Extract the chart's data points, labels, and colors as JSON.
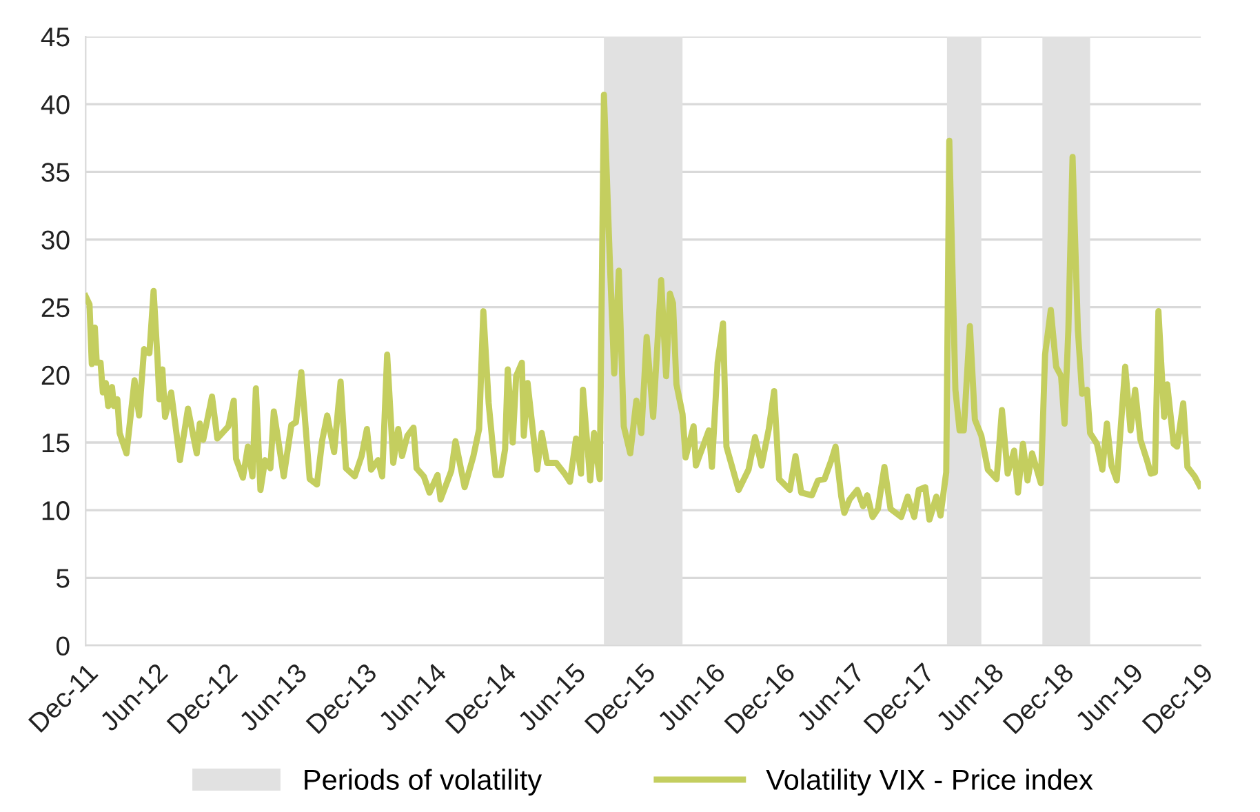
{
  "chart_data": {
    "type": "line",
    "x": [
      "2011-12-01",
      "2011-12-11",
      "2011-12-17",
      "2011-12-25",
      "2011-12-30",
      "2012-01-09",
      "2012-01-15",
      "2012-01-23",
      "2012-01-29",
      "2012-02-08",
      "2012-02-13",
      "2012-02-22",
      "2012-02-28",
      "2012-03-17",
      "2012-04-07",
      "2012-04-19",
      "2012-05-02",
      "2012-05-16",
      "2012-05-27",
      "2012-06-06",
      "2012-06-11",
      "2012-06-19",
      "2012-06-26",
      "2012-07-12",
      "2012-08-04",
      "2012-08-25",
      "2012-09-17",
      "2012-09-25",
      "2012-10-04",
      "2012-10-27",
      "2012-11-10",
      "2012-12-09",
      "2012-12-23",
      "2012-12-29",
      "2013-01-16",
      "2013-01-29",
      "2013-02-10",
      "2013-02-19",
      "2013-03-03",
      "2013-03-15",
      "2013-03-29",
      "2013-04-07",
      "2013-05-03",
      "2013-05-23",
      "2013-06-04",
      "2013-06-18",
      "2013-07-10",
      "2013-07-29",
      "2013-08-12",
      "2013-08-25",
      "2013-09-12",
      "2013-09-29",
      "2013-10-13",
      "2013-11-05",
      "2013-11-23",
      "2013-12-07",
      "2013-12-18",
      "2014-01-05",
      "2014-01-16",
      "2014-01-29",
      "2014-02-14",
      "2014-02-27",
      "2014-03-09",
      "2014-03-23",
      "2014-04-08",
      "2014-04-16",
      "2014-05-05",
      "2014-05-20",
      "2014-06-10",
      "2014-06-18",
      "2014-07-16",
      "2014-07-27",
      "2014-08-20",
      "2014-09-12",
      "2014-09-27",
      "2014-10-08",
      "2014-10-22",
      "2014-11-09",
      "2014-11-23",
      "2014-12-04",
      "2014-12-11",
      "2014-12-24",
      "2015-01-02",
      "2015-01-17",
      "2015-01-22",
      "2015-02-01",
      "2015-02-26",
      "2015-03-10",
      "2015-03-24",
      "2015-04-17",
      "2015-05-09",
      "2015-05-23",
      "2015-06-08",
      "2015-06-21",
      "2015-06-26",
      "2015-07-15",
      "2015-07-25",
      "2015-08-09",
      "2015-08-20",
      "2015-09-05",
      "2015-09-16",
      "2015-09-28",
      "2015-10-11",
      "2015-10-28",
      "2015-11-13",
      "2015-11-26",
      "2015-12-10",
      "2015-12-27",
      "2016-01-17",
      "2016-01-30",
      "2016-02-09",
      "2016-02-17",
      "2016-02-26",
      "2016-03-13",
      "2016-03-21",
      "2016-04-11",
      "2016-04-17",
      "2016-05-21",
      "2016-05-29",
      "2016-06-13",
      "2016-06-27",
      "2016-07-06",
      "2016-08-07",
      "2016-09-02",
      "2016-09-19",
      "2016-10-06",
      "2016-10-25",
      "2016-11-08",
      "2016-11-21",
      "2016-12-19",
      "2017-01-03",
      "2017-01-18",
      "2017-02-15",
      "2017-03-03",
      "2017-03-20",
      "2017-04-07",
      "2017-04-18",
      "2017-05-03",
      "2017-05-11",
      "2017-05-25",
      "2017-06-14",
      "2017-06-29",
      "2017-07-10",
      "2017-07-24",
      "2017-08-07",
      "2017-08-24",
      "2017-09-09",
      "2017-10-07",
      "2017-10-24",
      "2017-11-10",
      "2017-11-22",
      "2017-12-09",
      "2017-12-20",
      "2018-01-07",
      "2018-01-18",
      "2018-02-02",
      "2018-02-10",
      "2018-02-26",
      "2018-03-09",
      "2018-03-20",
      "2018-04-05",
      "2018-04-18",
      "2018-05-05",
      "2018-05-22",
      "2018-06-14",
      "2018-06-28",
      "2018-07-13",
      "2018-07-30",
      "2018-08-09",
      "2018-08-22",
      "2018-09-03",
      "2018-09-15",
      "2018-10-08",
      "2018-10-19",
      "2018-11-03",
      "2018-11-17",
      "2018-11-30",
      "2018-12-09",
      "2018-12-19",
      "2018-12-30",
      "2019-01-13",
      "2019-01-24",
      "2019-02-06",
      "2019-02-14",
      "2019-03-04",
      "2019-03-18",
      "2019-03-30",
      "2019-04-11",
      "2019-04-25",
      "2019-05-17",
      "2019-05-31",
      "2019-06-12",
      "2019-06-26",
      "2019-07-13",
      "2019-07-23",
      "2019-08-03",
      "2019-08-12",
      "2019-08-27",
      "2019-09-04",
      "2019-09-21",
      "2019-09-30",
      "2019-10-16",
      "2019-10-27",
      "2019-11-15",
      "2019-11-28"
    ],
    "series": [
      {
        "name": "Volatility VIX - Price index",
        "color": "#c4ce5f",
        "values": [
          25.8,
          25.2,
          20.8,
          23.5,
          20.9,
          20.9,
          18.7,
          19.4,
          17.7,
          19.1,
          17.7,
          18.2,
          15.7,
          14.2,
          19.6,
          17.0,
          21.9,
          21.6,
          26.2,
          21.3,
          18.2,
          20.4,
          16.9,
          18.7,
          13.7,
          17.5,
          14.2,
          16.4,
          15.2,
          18.4,
          15.3,
          16.2,
          18.1,
          13.8,
          12.4,
          14.7,
          12.5,
          19.0,
          11.5,
          13.7,
          13.1,
          17.3,
          12.5,
          16.3,
          16.5,
          20.2,
          12.3,
          11.9,
          15.2,
          17.0,
          14.3,
          19.5,
          13.1,
          12.5,
          14.0,
          16.0,
          13.0,
          13.7,
          12.5,
          21.5,
          13.5,
          16.0,
          14.0,
          15.5,
          16.1,
          13.1,
          12.5,
          11.3,
          12.6,
          10.8,
          12.9,
          15.1,
          11.7,
          14.0,
          16.0,
          24.7,
          17.9,
          12.6,
          12.6,
          14.5,
          20.4,
          15.0,
          19.9,
          20.9,
          15.5,
          19.4,
          13.0,
          15.7,
          13.5,
          13.5,
          12.7,
          12.1,
          15.3,
          12.7,
          18.9,
          12.2,
          15.7,
          12.3,
          40.7,
          28.0,
          20.1,
          27.7,
          16.2,
          14.2,
          18.1,
          15.7,
          22.8,
          16.9,
          27.0,
          19.9,
          26.0,
          25.3,
          19.3,
          17.1,
          13.9,
          16.2,
          13.3,
          15.9,
          13.2,
          20.9,
          23.8,
          14.7,
          11.5,
          13.0,
          15.4,
          13.3,
          16.0,
          18.8,
          12.3,
          11.5,
          14.0,
          11.3,
          11.1,
          12.2,
          12.3,
          13.7,
          14.7,
          11.0,
          9.8,
          10.8,
          11.5,
          10.3,
          11.1,
          9.5,
          10.1,
          13.2,
          10.1,
          9.5,
          11.0,
          9.5,
          11.5,
          11.7,
          9.3,
          11.0,
          9.6,
          12.8,
          37.3,
          18.9,
          15.9,
          15.9,
          23.6,
          16.7,
          15.5,
          13.0,
          12.3,
          17.4,
          12.7,
          14.4,
          11.3,
          14.9,
          12.2,
          14.2,
          12.0,
          21.5,
          24.8,
          20.6,
          19.9,
          16.4,
          23.3,
          36.1,
          23.3,
          18.6,
          18.9,
          15.7,
          14.9,
          13.0,
          16.4,
          13.3,
          12.2,
          20.6,
          15.9,
          18.9,
          15.2,
          13.7,
          12.7,
          12.8,
          24.7,
          16.9,
          19.3,
          14.9,
          14.7,
          17.9,
          13.2,
          12.5,
          11.8
        ]
      }
    ],
    "bands": [
      {
        "axis": "x",
        "from": "2015-08-20",
        "to": "2016-03-13",
        "label": "Periods of volatility",
        "color": "#e1e1e1"
      },
      {
        "axis": "x",
        "from": "2018-02-04",
        "to": "2018-05-05",
        "color": "#e1e1e1"
      },
      {
        "axis": "x",
        "from": "2018-10-12",
        "to": "2019-02-14",
        "color": "#e1e1e1"
      }
    ],
    "xlim": [
      "2011-12-01",
      "2019-12-01"
    ],
    "xticks": [
      {
        "value": "2011-12-01",
        "label": "Dec-11"
      },
      {
        "value": "2012-06-01",
        "label": "Jun-12"
      },
      {
        "value": "2012-12-01",
        "label": "Dec-12"
      },
      {
        "value": "2013-06-01",
        "label": "Jun-13"
      },
      {
        "value": "2013-12-01",
        "label": "Dec-13"
      },
      {
        "value": "2014-06-01",
        "label": "Jun-14"
      },
      {
        "value": "2014-12-01",
        "label": "Dec-14"
      },
      {
        "value": "2015-06-01",
        "label": "Jun-15"
      },
      {
        "value": "2015-12-01",
        "label": "Dec-15"
      },
      {
        "value": "2016-06-01",
        "label": "Jun-16"
      },
      {
        "value": "2016-12-01",
        "label": "Dec-16"
      },
      {
        "value": "2017-06-01",
        "label": "Jun-17"
      },
      {
        "value": "2017-12-01",
        "label": "Dec-17"
      },
      {
        "value": "2018-06-01",
        "label": "Jun-18"
      },
      {
        "value": "2018-12-01",
        "label": "Dec-18"
      },
      {
        "value": "2019-06-01",
        "label": "Jun-19"
      },
      {
        "value": "2019-12-01",
        "label": "Dec-19"
      }
    ],
    "ylim": [
      0,
      45
    ],
    "yticks": [
      0,
      5,
      10,
      15,
      20,
      25,
      30,
      35,
      40,
      45
    ],
    "grid": "y",
    "legend": "bottom",
    "marker": "none",
    "line_style": "solid"
  }
}
